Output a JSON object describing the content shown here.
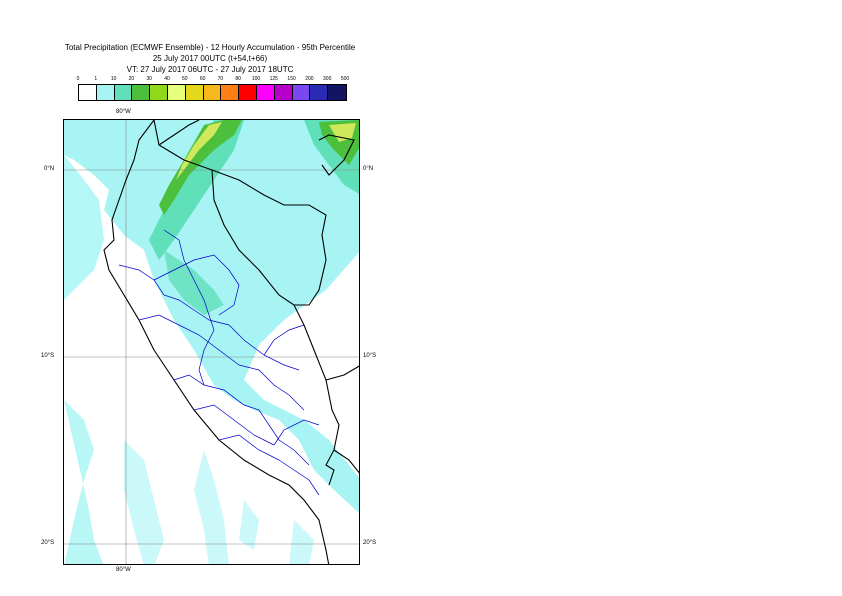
{
  "title": {
    "line1": "Total Precipitation (ECMWF Ensemble) - 12 Hourly Accumulation - 95th Percentile",
    "line2": "25 July 2017 00UTC (t+54,t+66)",
    "line3": "VT: 27 July 2017 06UTC - 27 July 2017 18UTC"
  },
  "legend": {
    "labels": [
      "0",
      "1",
      "10",
      "20",
      "30",
      "40",
      "50",
      "60",
      "70",
      "80",
      "100",
      "125",
      "150",
      "200",
      "300",
      "500"
    ],
    "colors": [
      "#ffffff",
      "#a8f4f4",
      "#5fe0b8",
      "#4cbf3c",
      "#8fd81c",
      "#e6ff7a",
      "#e4d81c",
      "#f7b81e",
      "#ff7e15",
      "#ff0000",
      "#ff00ff",
      "#b400c8",
      "#7a48f0",
      "#2a2ab4",
      "#141464"
    ]
  },
  "axes": {
    "top_lon": "80°W",
    "bottom_lon": "80°W",
    "lat_0": "0°N",
    "lat_10": "10°S",
    "lat_20": "20°S"
  },
  "colors": {
    "light_cyan": "#a8f4f4",
    "teal": "#5fe0b8",
    "green": "#4cbf3c",
    "yellow_green": "#cfe85c",
    "border": "#000000",
    "region": "#0000cc",
    "grid": "#888888"
  }
}
